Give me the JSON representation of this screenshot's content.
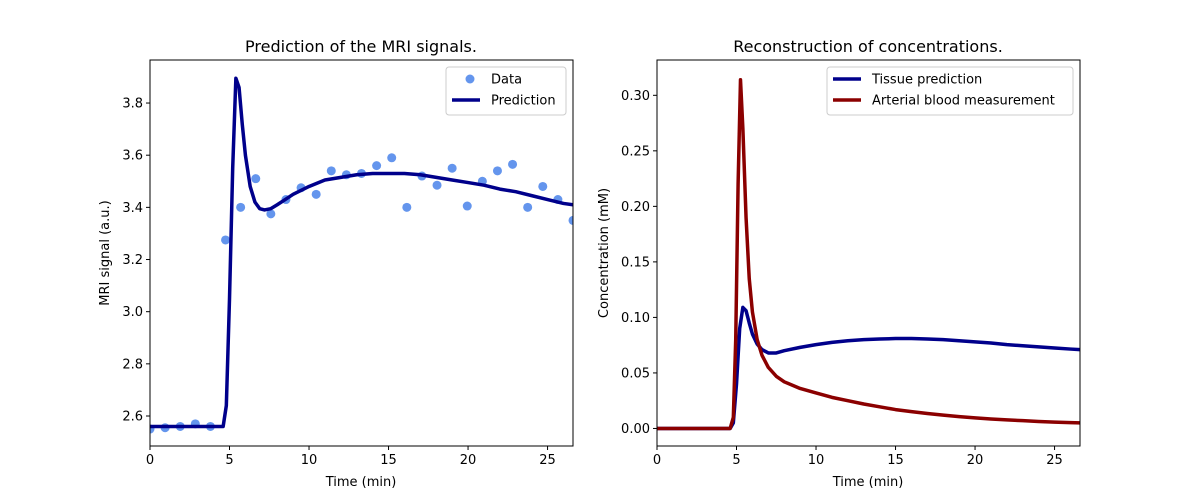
{
  "chart_data": [
    {
      "type": "scatter",
      "title": "Prediction of the MRI signals.",
      "xlabel": "Time (min)",
      "ylabel": "MRI signal (a.u.)",
      "xlim": [
        0,
        26.6
      ],
      "ylim": [
        2.485,
        3.965
      ],
      "xticks": [
        0,
        5,
        10,
        15,
        20,
        25
      ],
      "yticks": [
        2.6,
        2.8,
        3.0,
        3.2,
        3.4,
        3.6,
        3.8
      ],
      "ytick_labels": [
        "2.6",
        "2.8",
        "3.0",
        "3.2",
        "3.4",
        "3.6",
        "3.8"
      ],
      "legend": "top-right",
      "series": [
        {
          "name": "Data",
          "kind": "points",
          "color": "#6495ed",
          "x": [
            0.0,
            0.95,
            1.9,
            2.85,
            3.8,
            4.75,
            5.7,
            6.65,
            7.6,
            8.55,
            9.5,
            10.45,
            11.4,
            12.35,
            13.3,
            14.25,
            15.2,
            16.15,
            17.1,
            18.05,
            19.0,
            19.95,
            20.9,
            21.85,
            22.8,
            23.75,
            24.7,
            25.65,
            26.6
          ],
          "y": [
            2.55,
            2.555,
            2.56,
            2.57,
            2.56,
            3.275,
            3.4,
            3.51,
            3.375,
            3.43,
            3.475,
            3.45,
            3.54,
            3.525,
            3.53,
            3.56,
            3.59,
            3.4,
            3.52,
            3.485,
            3.55,
            3.405,
            3.5,
            3.54,
            3.565,
            3.4,
            3.48,
            3.43,
            3.35
          ]
        },
        {
          "name": "Prediction",
          "kind": "line",
          "color": "#00008b",
          "x": [
            0,
            4.6,
            4.8,
            5.0,
            5.2,
            5.4,
            5.6,
            5.8,
            6.0,
            6.3,
            6.6,
            6.9,
            7.2,
            7.6,
            8.0,
            8.5,
            9,
            10,
            11,
            12,
            13,
            14,
            15,
            16,
            17,
            18,
            19,
            20,
            21,
            22,
            23,
            24,
            25,
            26,
            26.6
          ],
          "y": [
            2.56,
            2.56,
            2.64,
            3.05,
            3.55,
            3.895,
            3.86,
            3.72,
            3.6,
            3.48,
            3.42,
            3.395,
            3.39,
            3.395,
            3.41,
            3.43,
            3.45,
            3.48,
            3.505,
            3.515,
            3.525,
            3.53,
            3.53,
            3.53,
            3.525,
            3.515,
            3.505,
            3.495,
            3.485,
            3.47,
            3.46,
            3.445,
            3.43,
            3.415,
            3.41
          ]
        }
      ]
    },
    {
      "type": "line",
      "title": "Reconstruction of concentrations.",
      "xlabel": "Time (min)",
      "ylabel": "Concentration (mM)",
      "xlim": [
        0,
        26.6
      ],
      "ylim": [
        -0.0158,
        0.3318
      ],
      "xticks": [
        0,
        5,
        10,
        15,
        20,
        25
      ],
      "yticks": [
        0.0,
        0.05,
        0.1,
        0.15,
        0.2,
        0.25,
        0.3
      ],
      "ytick_labels": [
        "0.00",
        "0.05",
        "0.10",
        "0.15",
        "0.20",
        "0.25",
        "0.30"
      ],
      "legend": "top-right",
      "series": [
        {
          "name": "Tissue prediction",
          "color": "#00008b",
          "x": [
            0,
            4.6,
            4.8,
            5.0,
            5.2,
            5.4,
            5.6,
            5.8,
            6.0,
            6.3,
            6.6,
            7.0,
            7.5,
            8.0,
            9,
            10,
            11,
            12,
            13,
            14,
            15,
            16,
            17,
            18,
            19,
            20,
            21,
            22,
            23,
            24,
            25,
            26,
            26.6
          ],
          "y": [
            0,
            0,
            0.005,
            0.04,
            0.09,
            0.109,
            0.106,
            0.095,
            0.085,
            0.076,
            0.071,
            0.068,
            0.068,
            0.07,
            0.073,
            0.0755,
            0.0775,
            0.079,
            0.08,
            0.0805,
            0.081,
            0.081,
            0.0805,
            0.08,
            0.079,
            0.078,
            0.077,
            0.0755,
            0.0745,
            0.0735,
            0.0725,
            0.0715,
            0.071
          ]
        },
        {
          "name": "Arterial blood measurement",
          "color": "#8b0000",
          "x": [
            0,
            4.6,
            4.8,
            4.95,
            5.1,
            5.25,
            5.4,
            5.6,
            5.8,
            6.0,
            6.3,
            6.6,
            7.0,
            7.5,
            8,
            9,
            10,
            11,
            12,
            13,
            14,
            15,
            16,
            17,
            18,
            19,
            20,
            21,
            22,
            23,
            24,
            25,
            26,
            26.6
          ],
          "y": [
            0,
            0,
            0.01,
            0.08,
            0.22,
            0.314,
            0.27,
            0.19,
            0.135,
            0.105,
            0.08,
            0.066,
            0.055,
            0.047,
            0.042,
            0.036,
            0.032,
            0.028,
            0.025,
            0.022,
            0.0195,
            0.017,
            0.0152,
            0.0135,
            0.012,
            0.0107,
            0.0095,
            0.0085,
            0.0077,
            0.007,
            0.0063,
            0.0057,
            0.0052,
            0.005
          ]
        }
      ]
    }
  ]
}
